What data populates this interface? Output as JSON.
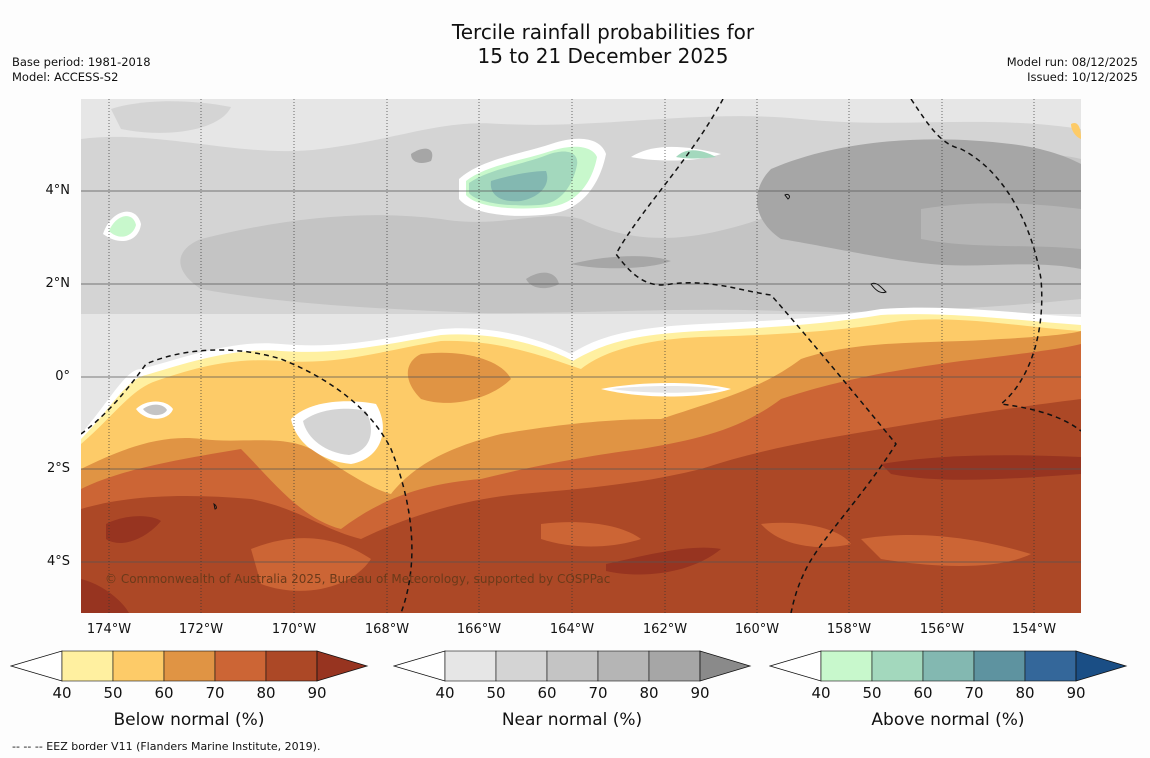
{
  "title": {
    "line1": "Tercile rainfall probabilities for",
    "line2": "15 to 21 December 2025"
  },
  "meta_left": {
    "base_period": "Base period: 1981-2018",
    "model": "Model: ACCESS-S2"
  },
  "meta_right": {
    "model_run": "Model run: 08/12/2025",
    "issued": "Issued: 10/12/2025"
  },
  "map": {
    "lat_labels": [
      "4°N",
      "2°N",
      "0°",
      "2°S",
      "4°S"
    ],
    "lon_labels": [
      "174°W",
      "172°W",
      "170°W",
      "168°W",
      "166°W",
      "164°W",
      "162°W",
      "160°W",
      "158°W",
      "156°W",
      "154°W"
    ],
    "copyright": "© Commonwealth of Australia 2025, Bureau of Meteorology, supported by COSPPac"
  },
  "colorbars": [
    {
      "title": "Below normal (%)",
      "ticks": [
        "40",
        "50",
        "60",
        "70",
        "80",
        "90"
      ],
      "colors": [
        "#fff0a0",
        "#fdcb68",
        "#e09444",
        "#cc6535",
        "#ac4826"
      ],
      "over_color": "#973420"
    },
    {
      "title": "Near normal (%)",
      "ticks": [
        "40",
        "50",
        "60",
        "70",
        "80",
        "90"
      ],
      "colors": [
        "#e6e6e6",
        "#d4d4d4",
        "#c4c4c4",
        "#b5b5b5",
        "#a6a6a6"
      ],
      "over_color": "#8a8a8a"
    },
    {
      "title": "Above normal (%)",
      "ticks": [
        "40",
        "50",
        "60",
        "70",
        "80",
        "90"
      ],
      "colors": [
        "#c8f8cc",
        "#a3d8bd",
        "#83b8b1",
        "#5e93a0",
        "#34679a"
      ],
      "over_color": "#1a4e85"
    }
  ],
  "footnote": "--  --  -- EEZ border V11 (Flanders Marine Institute, 2019)."
}
